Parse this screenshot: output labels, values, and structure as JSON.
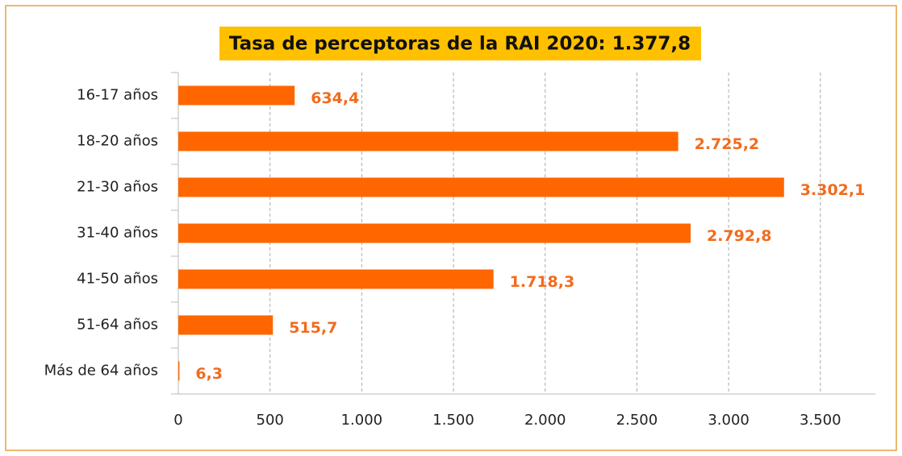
{
  "chart_data": {
    "type": "bar",
    "orientation": "horizontal",
    "title": "Tasa de perceptoras de la RAI 2020:  1.377,8",
    "categories": [
      "16-17 años",
      "18-20 años",
      "21-30 años",
      "31-40 años",
      "41-50 años",
      "51-64 años",
      "Más de 64 años"
    ],
    "values": [
      634.4,
      2725.2,
      3302.1,
      2792.8,
      1718.3,
      515.7,
      6.3
    ],
    "value_labels": [
      "634,4",
      "2.725,2",
      "3.302,1",
      "2.792,8",
      "1.718,3",
      "515,7",
      "6,3"
    ],
    "color": "#ff6600",
    "xlim": [
      0,
      3800
    ],
    "xticks": [
      0,
      500,
      {
        "value": 1000,
        "label": "1.000"
      },
      {
        "value": 1500,
        "label": "1.500"
      },
      {
        "value": 2000,
        "label": "2.000"
      },
      {
        "value": 2500,
        "label": "2.500"
      },
      {
        "value": 3000,
        "label": "3.000"
      },
      {
        "value": 3500,
        "label": "3.500"
      }
    ],
    "grid": true
  }
}
